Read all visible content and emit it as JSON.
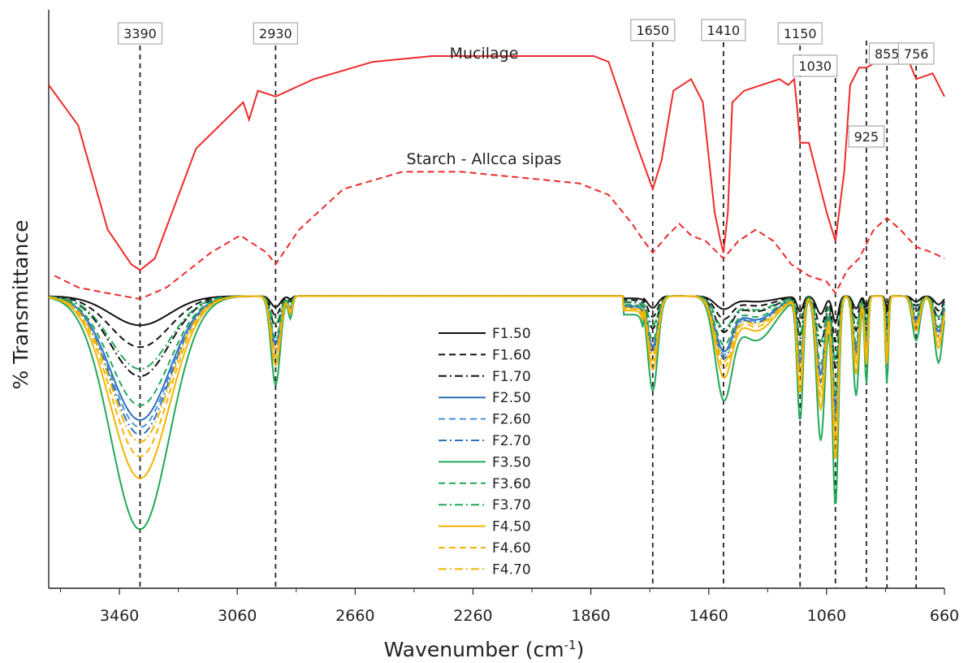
{
  "chart_data": {
    "type": "line",
    "title": "",
    "xlabel": "Wavenumber (cm",
    "xlabel_sup": "-1",
    "xlabel_close": ")",
    "ylabel": "% Transmittance",
    "xlim": [
      3700,
      660
    ],
    "x_reversed": true,
    "y_ticks_shown": false,
    "grid": false,
    "legend_position": "center",
    "x_ticks": [
      "3460",
      "3060",
      "2660",
      "2260",
      "1860",
      "1460",
      "1060",
      "660"
    ],
    "peak_labels": [
      "3390",
      "2930",
      "1650",
      "1410",
      "1150",
      "1030",
      "925",
      "855",
      "756"
    ],
    "series_labels": [
      {
        "text": "Mucilage"
      },
      {
        "text": "Starch - Allcca sipas"
      }
    ],
    "series": [
      {
        "name": "Mucilage",
        "color": "#ee2a2a",
        "style": "solid",
        "points": [
          [
            3700,
            0.87
          ],
          [
            3600,
            0.8
          ],
          [
            3500,
            0.62
          ],
          [
            3420,
            0.56
          ],
          [
            3390,
            0.55
          ],
          [
            3340,
            0.57
          ],
          [
            3200,
            0.76
          ],
          [
            3100,
            0.81
          ],
          [
            3060,
            0.83
          ],
          [
            3040,
            0.84
          ],
          [
            3020,
            0.81
          ],
          [
            2990,
            0.86
          ],
          [
            2930,
            0.85
          ],
          [
            2800,
            0.88
          ],
          [
            2600,
            0.91
          ],
          [
            2400,
            0.92
          ],
          [
            2200,
            0.92
          ],
          [
            1850,
            0.92
          ],
          [
            1800,
            0.91
          ],
          [
            1760,
            0.85
          ],
          [
            1700,
            0.76
          ],
          [
            1650,
            0.69
          ],
          [
            1620,
            0.74
          ],
          [
            1580,
            0.86
          ],
          [
            1520,
            0.88
          ],
          [
            1480,
            0.84
          ],
          [
            1440,
            0.65
          ],
          [
            1420,
            0.6
          ],
          [
            1410,
            0.58
          ],
          [
            1395,
            0.65
          ],
          [
            1380,
            0.84
          ],
          [
            1340,
            0.86
          ],
          [
            1280,
            0.87
          ],
          [
            1220,
            0.88
          ],
          [
            1190,
            0.87
          ],
          [
            1170,
            0.88
          ],
          [
            1160,
            0.83
          ],
          [
            1150,
            0.77
          ],
          [
            1120,
            0.77
          ],
          [
            1060,
            0.65
          ],
          [
            1030,
            0.6
          ],
          [
            1000,
            0.72
          ],
          [
            980,
            0.87
          ],
          [
            950,
            0.9
          ],
          [
            925,
            0.9
          ],
          [
            890,
            0.91
          ],
          [
            855,
            0.91
          ],
          [
            820,
            0.91
          ],
          [
            780,
            0.91
          ],
          [
            756,
            0.88
          ],
          [
            700,
            0.89
          ],
          [
            660,
            0.85
          ]
        ]
      },
      {
        "name": "Starch - Allcca sipas",
        "color": "#ee2a2a",
        "style": "dashed",
        "points": [
          [
            3680,
            0.54
          ],
          [
            3600,
            0.52
          ],
          [
            3500,
            0.51
          ],
          [
            3390,
            0.5
          ],
          [
            3300,
            0.52
          ],
          [
            3150,
            0.58
          ],
          [
            3050,
            0.61
          ],
          [
            2960,
            0.58
          ],
          [
            2930,
            0.56
          ],
          [
            2850,
            0.62
          ],
          [
            2700,
            0.69
          ],
          [
            2500,
            0.72
          ],
          [
            2300,
            0.72
          ],
          [
            2100,
            0.71
          ],
          [
            1900,
            0.7
          ],
          [
            1800,
            0.68
          ],
          [
            1720,
            0.63
          ],
          [
            1680,
            0.6
          ],
          [
            1650,
            0.58
          ],
          [
            1600,
            0.61
          ],
          [
            1560,
            0.63
          ],
          [
            1520,
            0.61
          ],
          [
            1470,
            0.6
          ],
          [
            1410,
            0.57
          ],
          [
            1360,
            0.6
          ],
          [
            1300,
            0.62
          ],
          [
            1240,
            0.6
          ],
          [
            1180,
            0.56
          ],
          [
            1120,
            0.54
          ],
          [
            1060,
            0.53
          ],
          [
            1030,
            0.51
          ],
          [
            990,
            0.55
          ],
          [
            950,
            0.57
          ],
          [
            900,
            0.62
          ],
          [
            855,
            0.64
          ],
          [
            810,
            0.62
          ],
          [
            756,
            0.59
          ],
          [
            700,
            0.58
          ],
          [
            660,
            0.57
          ]
        ]
      },
      {
        "name": "F1.50",
        "color": "#111111",
        "style": "solid",
        "depth": 0.2
      },
      {
        "name": "F1.60",
        "color": "#111111",
        "style": "dashed",
        "depth": 0.35
      },
      {
        "name": "F1.70",
        "color": "#111111",
        "style": "dashdot",
        "depth": 0.55
      },
      {
        "name": "F2.50",
        "color": "#2e6fb8",
        "style": "solid",
        "depth": 0.85
      },
      {
        "name": "F2.60",
        "color": "#4a94d8",
        "style": "dashed",
        "depth": 0.9
      },
      {
        "name": "F2.70",
        "color": "#2e6fb8",
        "style": "dashdot",
        "depth": 0.95
      },
      {
        "name": "F3.50",
        "color": "#22a85a",
        "style": "solid",
        "depth": 1.6
      },
      {
        "name": "F3.60",
        "color": "#22a85a",
        "style": "dashed",
        "depth": 0.75
      },
      {
        "name": "F3.70",
        "color": "#22a85a",
        "style": "dashdot",
        "depth": 0.5
      },
      {
        "name": "F4.50",
        "color": "#f2b400",
        "style": "solid",
        "depth": 1.25
      },
      {
        "name": "F4.60",
        "color": "#f2b400",
        "style": "dashed",
        "depth": 1.1
      },
      {
        "name": "F4.70",
        "color": "#f2b400",
        "style": "dashdot",
        "depth": 1.0
      }
    ]
  }
}
